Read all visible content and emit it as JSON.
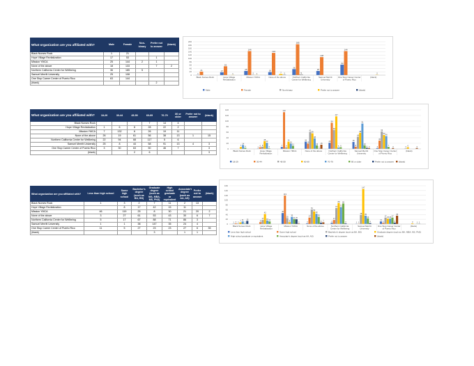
{
  "tables": [
    {
      "question": "What organization are you affiliated with?",
      "headers": [
        "Male",
        "Female",
        "Non-binary",
        "Prefer not to answer",
        "(blank)"
      ],
      "rows": [
        {
          "label": "Black Nurses Rock",
          "values": [
            "1",
            "21",
            "",
            "",
            ""
          ]
        },
        {
          "label": "Hope Village Revitalization",
          "values": [
            "17",
            "53",
            "",
            "1",
            ""
          ]
        },
        {
          "label": "Mission YMCA",
          "values": [
            "25",
            "144",
            "2",
            "1",
            ""
          ]
        },
        {
          "label": "None of the above",
          "values": [
            "18",
            "133",
            "",
            "7",
            "2"
          ]
        },
        {
          "label": "Northern California Center for Wellbeing",
          "values": [
            "36",
            "185",
            "5",
            "",
            ""
          ]
        },
        {
          "label": "Samuel Merritt University",
          "values": [
            "25",
            "108",
            "",
            "",
            ""
          ]
        },
        {
          "label": "One Stop Career Center of Puerto Rico",
          "values": [
            "63",
            "144",
            "",
            "",
            ""
          ]
        },
        {
          "label": "(blank)",
          "values": [
            "",
            "",
            "",
            "2",
            ""
          ]
        }
      ]
    },
    {
      "question": "What organization are you affiliated with?",
      "headers": [
        "18-29",
        "30-44",
        "45-59",
        "60-69",
        "70-79",
        "80 or older",
        "Prefer not to answer",
        "(blank)"
      ],
      "rows": [
        {
          "label": "Black Nurses Rock",
          "values": [
            "",
            "",
            "",
            "7",
            "14",
            "4",
            "",
            ""
          ]
        },
        {
          "label": "Hope Village Revitalization",
          "values": [
            "1",
            "6",
            "8",
            "28",
            "22",
            "2",
            "",
            ""
          ]
        },
        {
          "label": "Mission YMCA",
          "values": [
            "7",
            "132",
            "6",
            "26",
            "19",
            "11",
            "",
            ""
          ]
        },
        {
          "label": "None of the above",
          "values": [
            "26",
            "19",
            "61",
            "56",
            "38",
            "13",
            "1",
            "15"
          ]
        },
        {
          "label": "Northern California Center for Wellbeing",
          "values": [
            "22",
            "94",
            "68",
            "117",
            "5",
            "6",
            "",
            ""
          ]
        },
        {
          "label": "Samuel Merritt University",
          "values": [
            "25",
            "8",
            "44",
            "58",
            "91",
            "13",
            "4",
            "3"
          ]
        },
        {
          "label": "One Stop Career Center of Puerto Rico",
          "values": [
            "3",
            "30",
            "63",
            "50",
            "46",
            "7",
            "",
            "3"
          ]
        },
        {
          "label": "(blank)",
          "values": [
            "",
            "",
            "2",
            "6",
            "",
            "",
            "",
            "3"
          ]
        }
      ]
    },
    {
      "question": "What organization are you affiliated with?",
      "headers": [
        "Less than high school",
        "Some high school",
        "Bachelor's degree (such as BA, BS)",
        "Graduate degree (such as MA, MBA, MS, PhD)",
        "High school graduate or equivalent",
        "Associate's degree (such as AA, AS)",
        "Prefer not to answer",
        "(blank)"
      ],
      "rows": [
        {
          "label": "Black Nurses Rock",
          "values": [
            "1",
            "3",
            "2",
            "7",
            "11",
            "2",
            "13",
            ""
          ]
        },
        {
          "label": "Hope Village Revitalization",
          "values": [
            "",
            "8",
            "17",
            "42",
            "15",
            "11",
            "",
            ""
          ]
        },
        {
          "label": "Mission YMCA",
          "values": [
            "46",
            "119",
            "25",
            "8",
            "30",
            "21",
            "20",
            "2"
          ]
        },
        {
          "label": "None of the above",
          "values": [
            "3",
            "27",
            "61",
            "53",
            "43",
            "30",
            "6",
            "7"
          ]
        },
        {
          "label": "Northern California Center for Wellbeing",
          "values": [
            "5",
            "17",
            "67",
            "88",
            "71",
            "86",
            "3",
            ""
          ]
        },
        {
          "label": "Samuel Merritt University",
          "values": [
            "1",
            "1",
            "38",
            "147",
            "35",
            "24",
            "4",
            ""
          ]
        },
        {
          "label": "One Stop Career Center of Puerto Rico",
          "values": [
            "11",
            "5",
            "27",
            "23",
            "23",
            "27",
            "6",
            "35"
          ]
        },
        {
          "label": "(blank)",
          "values": [
            "",
            "",
            "",
            "3",
            "",
            "1",
            "1",
            ""
          ]
        }
      ]
    }
  ],
  "chart_data": [
    {
      "type": "bar",
      "ylim": [
        0,
        200
      ],
      "yticks": [
        0,
        20,
        40,
        60,
        80,
        100,
        120,
        140,
        160,
        180,
        200
      ],
      "categories": [
        "Black Nurses Rock",
        "Hope Village Revitalization",
        "Mission YMCA",
        "None of the above",
        "Northern California Center for Wellbeing",
        "Samuel Merritt University",
        "One Stop Career Center of Puerto Rico",
        "(blank)"
      ],
      "series": [
        {
          "name": "Male",
          "color": "#4472c4",
          "values": [
            1,
            17,
            25,
            18,
            36,
            25,
            63,
            null
          ]
        },
        {
          "name": "Female",
          "color": "#ed7d31",
          "values": [
            21,
            53,
            144,
            133,
            185,
            108,
            144,
            null
          ]
        },
        {
          "name": "Non-binary",
          "color": "#a5a5a5",
          "values": [
            null,
            null,
            2,
            null,
            5,
            null,
            null,
            null
          ]
        },
        {
          "name": "Prefer not to answer",
          "color": "#ffc000",
          "values": [
            null,
            1,
            1,
            7,
            null,
            null,
            null,
            2
          ]
        },
        {
          "name": "(blank)",
          "color": "#264478",
          "values": [
            null,
            null,
            null,
            2,
            null,
            null,
            null,
            null
          ]
        }
      ]
    },
    {
      "type": "bar",
      "ylim": [
        0,
        140
      ],
      "yticks": [
        0,
        20,
        40,
        60,
        80,
        100,
        120,
        140
      ],
      "categories": [
        "Black Nurses Rock",
        "Hope Village Revitalization",
        "Mission YMCA",
        "None of the above",
        "Northern California Center for Wellbeing",
        "Samuel Merritt University",
        "One Stop Career Center of Puerto Rico",
        "(blank)"
      ],
      "series": [
        {
          "name": "18-29",
          "color": "#4472c4",
          "values": [
            null,
            1,
            7,
            26,
            22,
            25,
            3,
            null
          ]
        },
        {
          "name": "30-44",
          "color": "#ed7d31",
          "values": [
            null,
            6,
            132,
            19,
            94,
            8,
            30,
            null
          ]
        },
        {
          "name": "45-59",
          "color": "#a5a5a5",
          "values": [
            null,
            8,
            6,
            61,
            68,
            44,
            63,
            2
          ]
        },
        {
          "name": "60-69",
          "color": "#ffc000",
          "values": [
            7,
            28,
            26,
            56,
            117,
            58,
            50,
            6
          ]
        },
        {
          "name": "70-79",
          "color": "#5b9bd5",
          "values": [
            14,
            22,
            19,
            38,
            5,
            91,
            46,
            null
          ]
        },
        {
          "name": "80 or older",
          "color": "#70ad47",
          "values": [
            4,
            2,
            11,
            13,
            6,
            13,
            7,
            null
          ]
        },
        {
          "name": "Prefer not to answer",
          "color": "#264478",
          "values": [
            null,
            null,
            null,
            1,
            null,
            4,
            null,
            null
          ]
        },
        {
          "name": "(blank)",
          "color": "#9e480e",
          "values": [
            null,
            null,
            null,
            15,
            null,
            3,
            3,
            3
          ]
        }
      ]
    },
    {
      "type": "bar",
      "ylim": [
        0,
        160
      ],
      "yticks": [
        0,
        20,
        40,
        60,
        80,
        100,
        120,
        140,
        160
      ],
      "categories": [
        "Black Nurses Rock",
        "Hope Village Revitalization",
        "Mission YMCA",
        "None of the above",
        "Northern California Center for Wellbeing",
        "Samuel Merritt University",
        "One Stop Career Center of Puerto Rico",
        "(blank)"
      ],
      "series": [
        {
          "name": "Less than high school",
          "color": "#4472c4",
          "values": [
            1,
            null,
            46,
            3,
            5,
            1,
            11,
            null
          ]
        },
        {
          "name": "Some high school",
          "color": "#ed7d31",
          "values": [
            3,
            8,
            119,
            27,
            17,
            1,
            5,
            null
          ]
        },
        {
          "name": "Bachelor's degree (such as BA, BS)",
          "color": "#a5a5a5",
          "values": [
            2,
            17,
            25,
            61,
            67,
            38,
            27,
            null
          ]
        },
        {
          "name": "Graduate degree (such as MA, MBA, MS, PhD)",
          "color": "#ffc000",
          "values": [
            7,
            42,
            8,
            53,
            88,
            147,
            23,
            3
          ]
        },
        {
          "name": "High school graduate or equivalent",
          "color": "#5b9bd5",
          "values": [
            11,
            15,
            30,
            43,
            71,
            35,
            23,
            null
          ]
        },
        {
          "name": "Associate's degree (such as AA, AS)",
          "color": "#70ad47",
          "values": [
            2,
            11,
            21,
            30,
            86,
            24,
            27,
            1
          ]
        },
        {
          "name": "Prefer not to answer",
          "color": "#264478",
          "values": [
            13,
            null,
            20,
            6,
            3,
            4,
            6,
            1
          ]
        },
        {
          "name": "(blank)",
          "color": "#9e480e",
          "values": [
            null,
            null,
            2,
            7,
            null,
            null,
            35,
            null
          ]
        }
      ]
    }
  ]
}
